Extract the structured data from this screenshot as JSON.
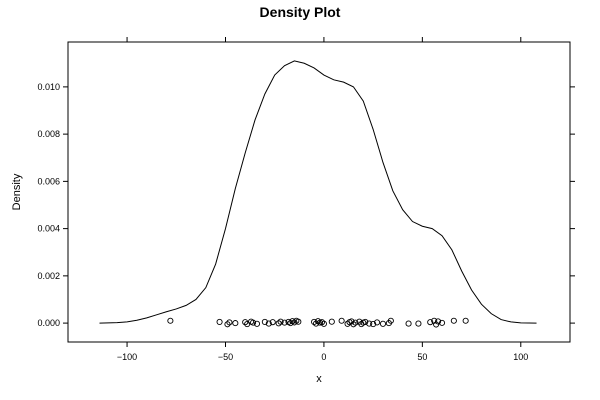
{
  "chart_data": {
    "type": "line",
    "title": "Density Plot",
    "xlabel": "x",
    "ylabel": "Density",
    "xlim": [
      -130,
      125
    ],
    "ylim": [
      -0.0008,
      0.0119
    ],
    "x_ticks": [
      -100,
      -50,
      0,
      50,
      100
    ],
    "x_tick_labels": [
      "−100",
      "−50",
      "0",
      "50",
      "100"
    ],
    "y_ticks": [
      0.0,
      0.002,
      0.004,
      0.006,
      0.008,
      0.01
    ],
    "y_tick_labels": [
      "0.000",
      "0.002",
      "0.004",
      "0.006",
      "0.008",
      "0.010"
    ],
    "grid": false,
    "series": [
      {
        "type": "line",
        "x": [
          -114,
          -105,
          -100,
          -95,
          -90,
          -85,
          -80,
          -75,
          -70,
          -65,
          -60,
          -55,
          -50,
          -45,
          -40,
          -35,
          -30,
          -25,
          -20,
          -15,
          -10,
          -5,
          0,
          5,
          10,
          15,
          20,
          25,
          30,
          35,
          40,
          45,
          50,
          55,
          60,
          65,
          70,
          75,
          80,
          85,
          90,
          95,
          100,
          108
        ],
        "y": [
          0.0,
          2e-05,
          5e-05,
          0.00012,
          0.00022,
          0.00035,
          0.00048,
          0.0006,
          0.00075,
          0.001,
          0.0015,
          0.0025,
          0.004,
          0.0057,
          0.0072,
          0.0086,
          0.0097,
          0.0105,
          0.0109,
          0.0111,
          0.011,
          0.0108,
          0.0105,
          0.0103,
          0.0102,
          0.01,
          0.0094,
          0.0082,
          0.0068,
          0.0056,
          0.0048,
          0.0043,
          0.0041,
          0.004,
          0.0037,
          0.0031,
          0.0022,
          0.0014,
          0.0008,
          0.0004,
          0.00015,
          5e-05,
          1e-05,
          0.0
        ]
      },
      {
        "type": "scatter",
        "marker": "open-circle",
        "x": [
          -78,
          -53,
          -49,
          -48,
          -45,
          -40,
          -39,
          -37,
          -36,
          -34,
          -30,
          -28,
          -26,
          -23,
          -22,
          -20,
          -18,
          -17,
          -16,
          -15,
          -14,
          -13,
          -5,
          -4,
          -3,
          -2,
          -1,
          0,
          4,
          9,
          12,
          13,
          14,
          15,
          16,
          18,
          19,
          20,
          21,
          23,
          25,
          27,
          30,
          33,
          34,
          43,
          48,
          54,
          56,
          57,
          58,
          60,
          66,
          72
        ],
        "y": [
          0.0001,
          5e-05,
          -5e-05,
          3e-05,
          0.0,
          4e-05,
          -4e-05,
          6e-05,
          2e-05,
          -3e-05,
          5e-05,
          -2e-05,
          4e-05,
          -1e-05,
          6e-05,
          2e-05,
          5e-05,
          0.0,
          8e-05,
          3e-05,
          0.0001,
          6e-05,
          5e-05,
          -2e-05,
          8e-05,
          2e-05,
          4e-05,
          -3e-05,
          6e-05,
          0.0001,
          -3e-05,
          4e-05,
          7e-05,
          -5e-05,
          2e-05,
          6e-05,
          -4e-05,
          2e-05,
          5e-05,
          -2e-05,
          -4e-05,
          3e-05,
          -3e-05,
          0.0,
          0.0001,
          -2e-05,
          -2e-05,
          4e-05,
          0.0001,
          -6e-05,
          7e-05,
          1e-05,
          0.0001,
          0.0001
        ]
      }
    ]
  }
}
